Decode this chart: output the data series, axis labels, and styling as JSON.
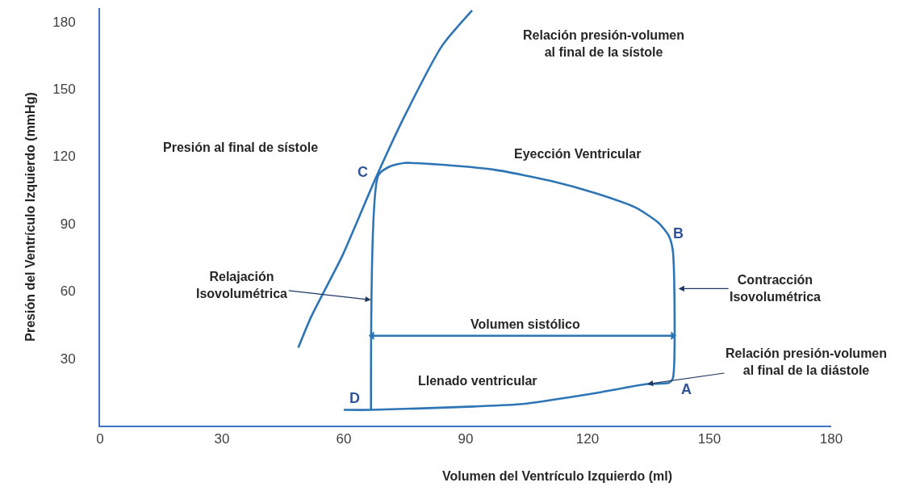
{
  "chart_data": {
    "type": "line",
    "xlabel": "Volumen del Ventrículo Izquierdo (ml)",
    "ylabel": "Presión del Ventrículo Izquierdo (mmHg)",
    "xlim": [
      0,
      180
    ],
    "ylim": [
      0,
      186
    ],
    "xticks": [
      0,
      30,
      60,
      90,
      120,
      150,
      180
    ],
    "yticks": [
      30,
      60,
      90,
      120,
      150,
      180
    ],
    "series": [
      {
        "color": "#2e75b6",
        "x": [
          48.8,
          52,
          59.6,
          67.7,
          75,
          84.3,
          91.6
        ],
        "values": [
          34.7,
          48.6,
          75.5,
          109.6,
          138,
          169.5,
          185
        ]
      },
      {
        "color": "#2e75b6",
        "x": [
          60,
          66.7,
          92,
          104,
          120.5,
          134.7,
          140,
          141,
          141,
          140,
          137.5,
          132,
          122,
          111,
          97,
          82.7,
          75,
          71.3,
          68.5,
          66.7
        ],
        "values": [
          7,
          7,
          8.5,
          9.6,
          14,
          18.5,
          19,
          21,
          78,
          84.6,
          90.3,
          97,
          103.5,
          109,
          114,
          116.4,
          117,
          115.4,
          111.5,
          7
        ]
      },
      {
        "color": "#2e75b6",
        "x": [
          67,
          141
        ],
        "values": [
          40,
          40
        ],
        "marker": "triangle"
      }
    ],
    "annotations": [
      "Relación presión-volumen\nal final de la sístole",
      "Presión al final de sístole",
      "Eyección Ventricular",
      "C",
      "B",
      "A",
      "D",
      {
        "text": "Relajación\nIsovolumétrica",
        "x": 66.7,
        "y": 56
      },
      {
        "text": "Contracción\nIsovolumétrica",
        "x": 142.4,
        "y": 61
      },
      "Volumen sistólico",
      {
        "text": "Relación presión-volumen\nal final de la diástole",
        "x": 134.7,
        "y": 18.5
      },
      "Llenado ventricular"
    ]
  }
}
